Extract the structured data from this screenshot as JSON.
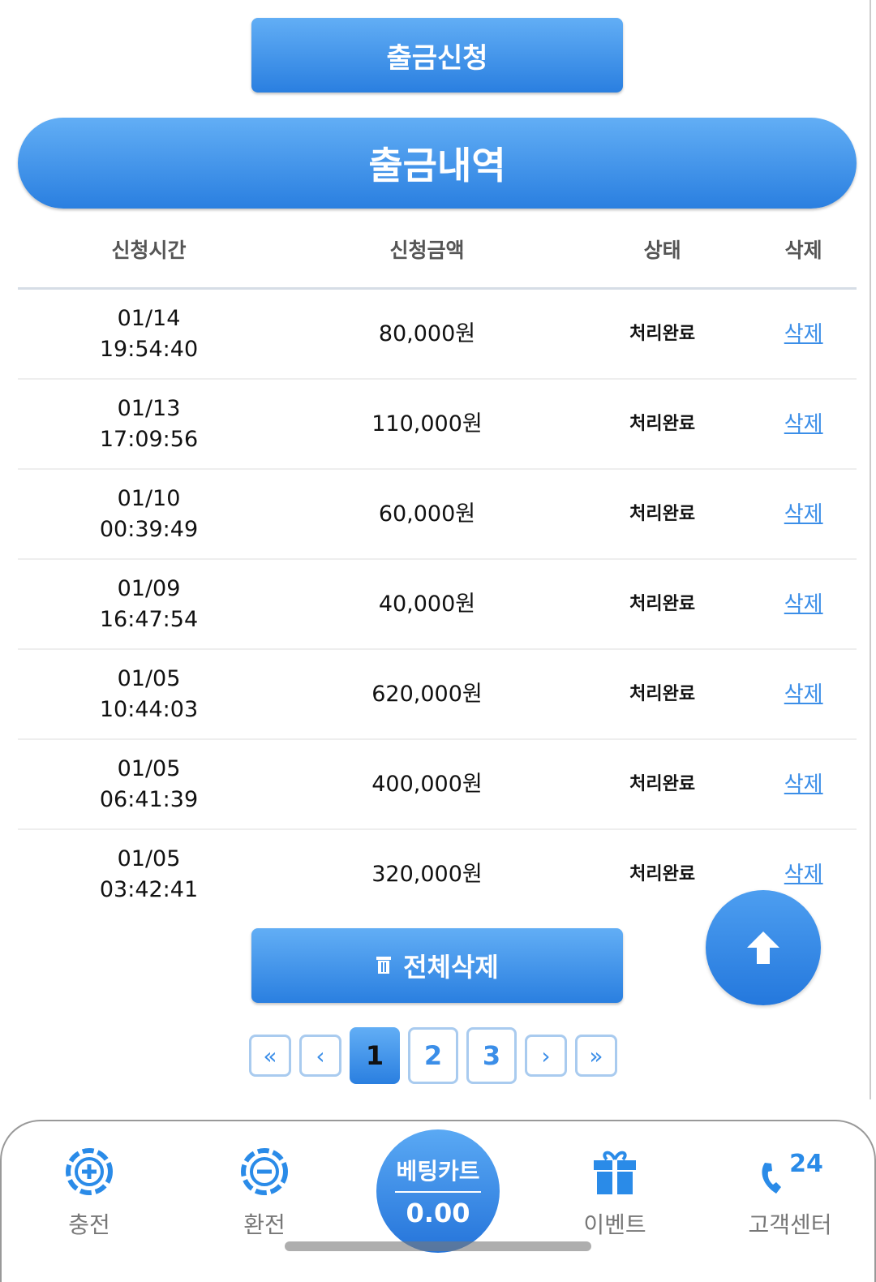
{
  "withdraw_request_button": "출금신청",
  "history_title": "출금내역",
  "table": {
    "headers": [
      "신청시간",
      "신청금액",
      "상태",
      "삭제"
    ],
    "rows": [
      {
        "date": "01/14",
        "time": "19:54:40",
        "amount": "80,000원",
        "status": "처리완료",
        "delete": "삭제"
      },
      {
        "date": "01/13",
        "time": "17:09:56",
        "amount": "110,000원",
        "status": "처리완료",
        "delete": "삭제"
      },
      {
        "date": "01/10",
        "time": "00:39:49",
        "amount": "60,000원",
        "status": "처리완료",
        "delete": "삭제"
      },
      {
        "date": "01/09",
        "time": "16:47:54",
        "amount": "40,000원",
        "status": "처리완료",
        "delete": "삭제"
      },
      {
        "date": "01/05",
        "time": "10:44:03",
        "amount": "620,000원",
        "status": "처리완료",
        "delete": "삭제"
      },
      {
        "date": "01/05",
        "time": "06:41:39",
        "amount": "400,000원",
        "status": "처리완료",
        "delete": "삭제"
      },
      {
        "date": "01/05",
        "time": "03:42:41",
        "amount": "320,000원",
        "status": "처리완료",
        "delete": "삭제"
      }
    ]
  },
  "delete_all_button": "전체삭제",
  "pagination": {
    "first": "«",
    "prev": "‹",
    "pages": [
      "1",
      "2",
      "3"
    ],
    "current": "1",
    "next": "›",
    "last": "»"
  },
  "bottom_nav": {
    "charge": "충전",
    "exchange": "환전",
    "betting_cart": {
      "label": "베팅카트",
      "value": "0.00"
    },
    "event": "이벤트",
    "support": "고객센터",
    "support_badge": "24"
  },
  "colors": {
    "accent": "#2a7fe0",
    "link": "#3b8ee8"
  }
}
